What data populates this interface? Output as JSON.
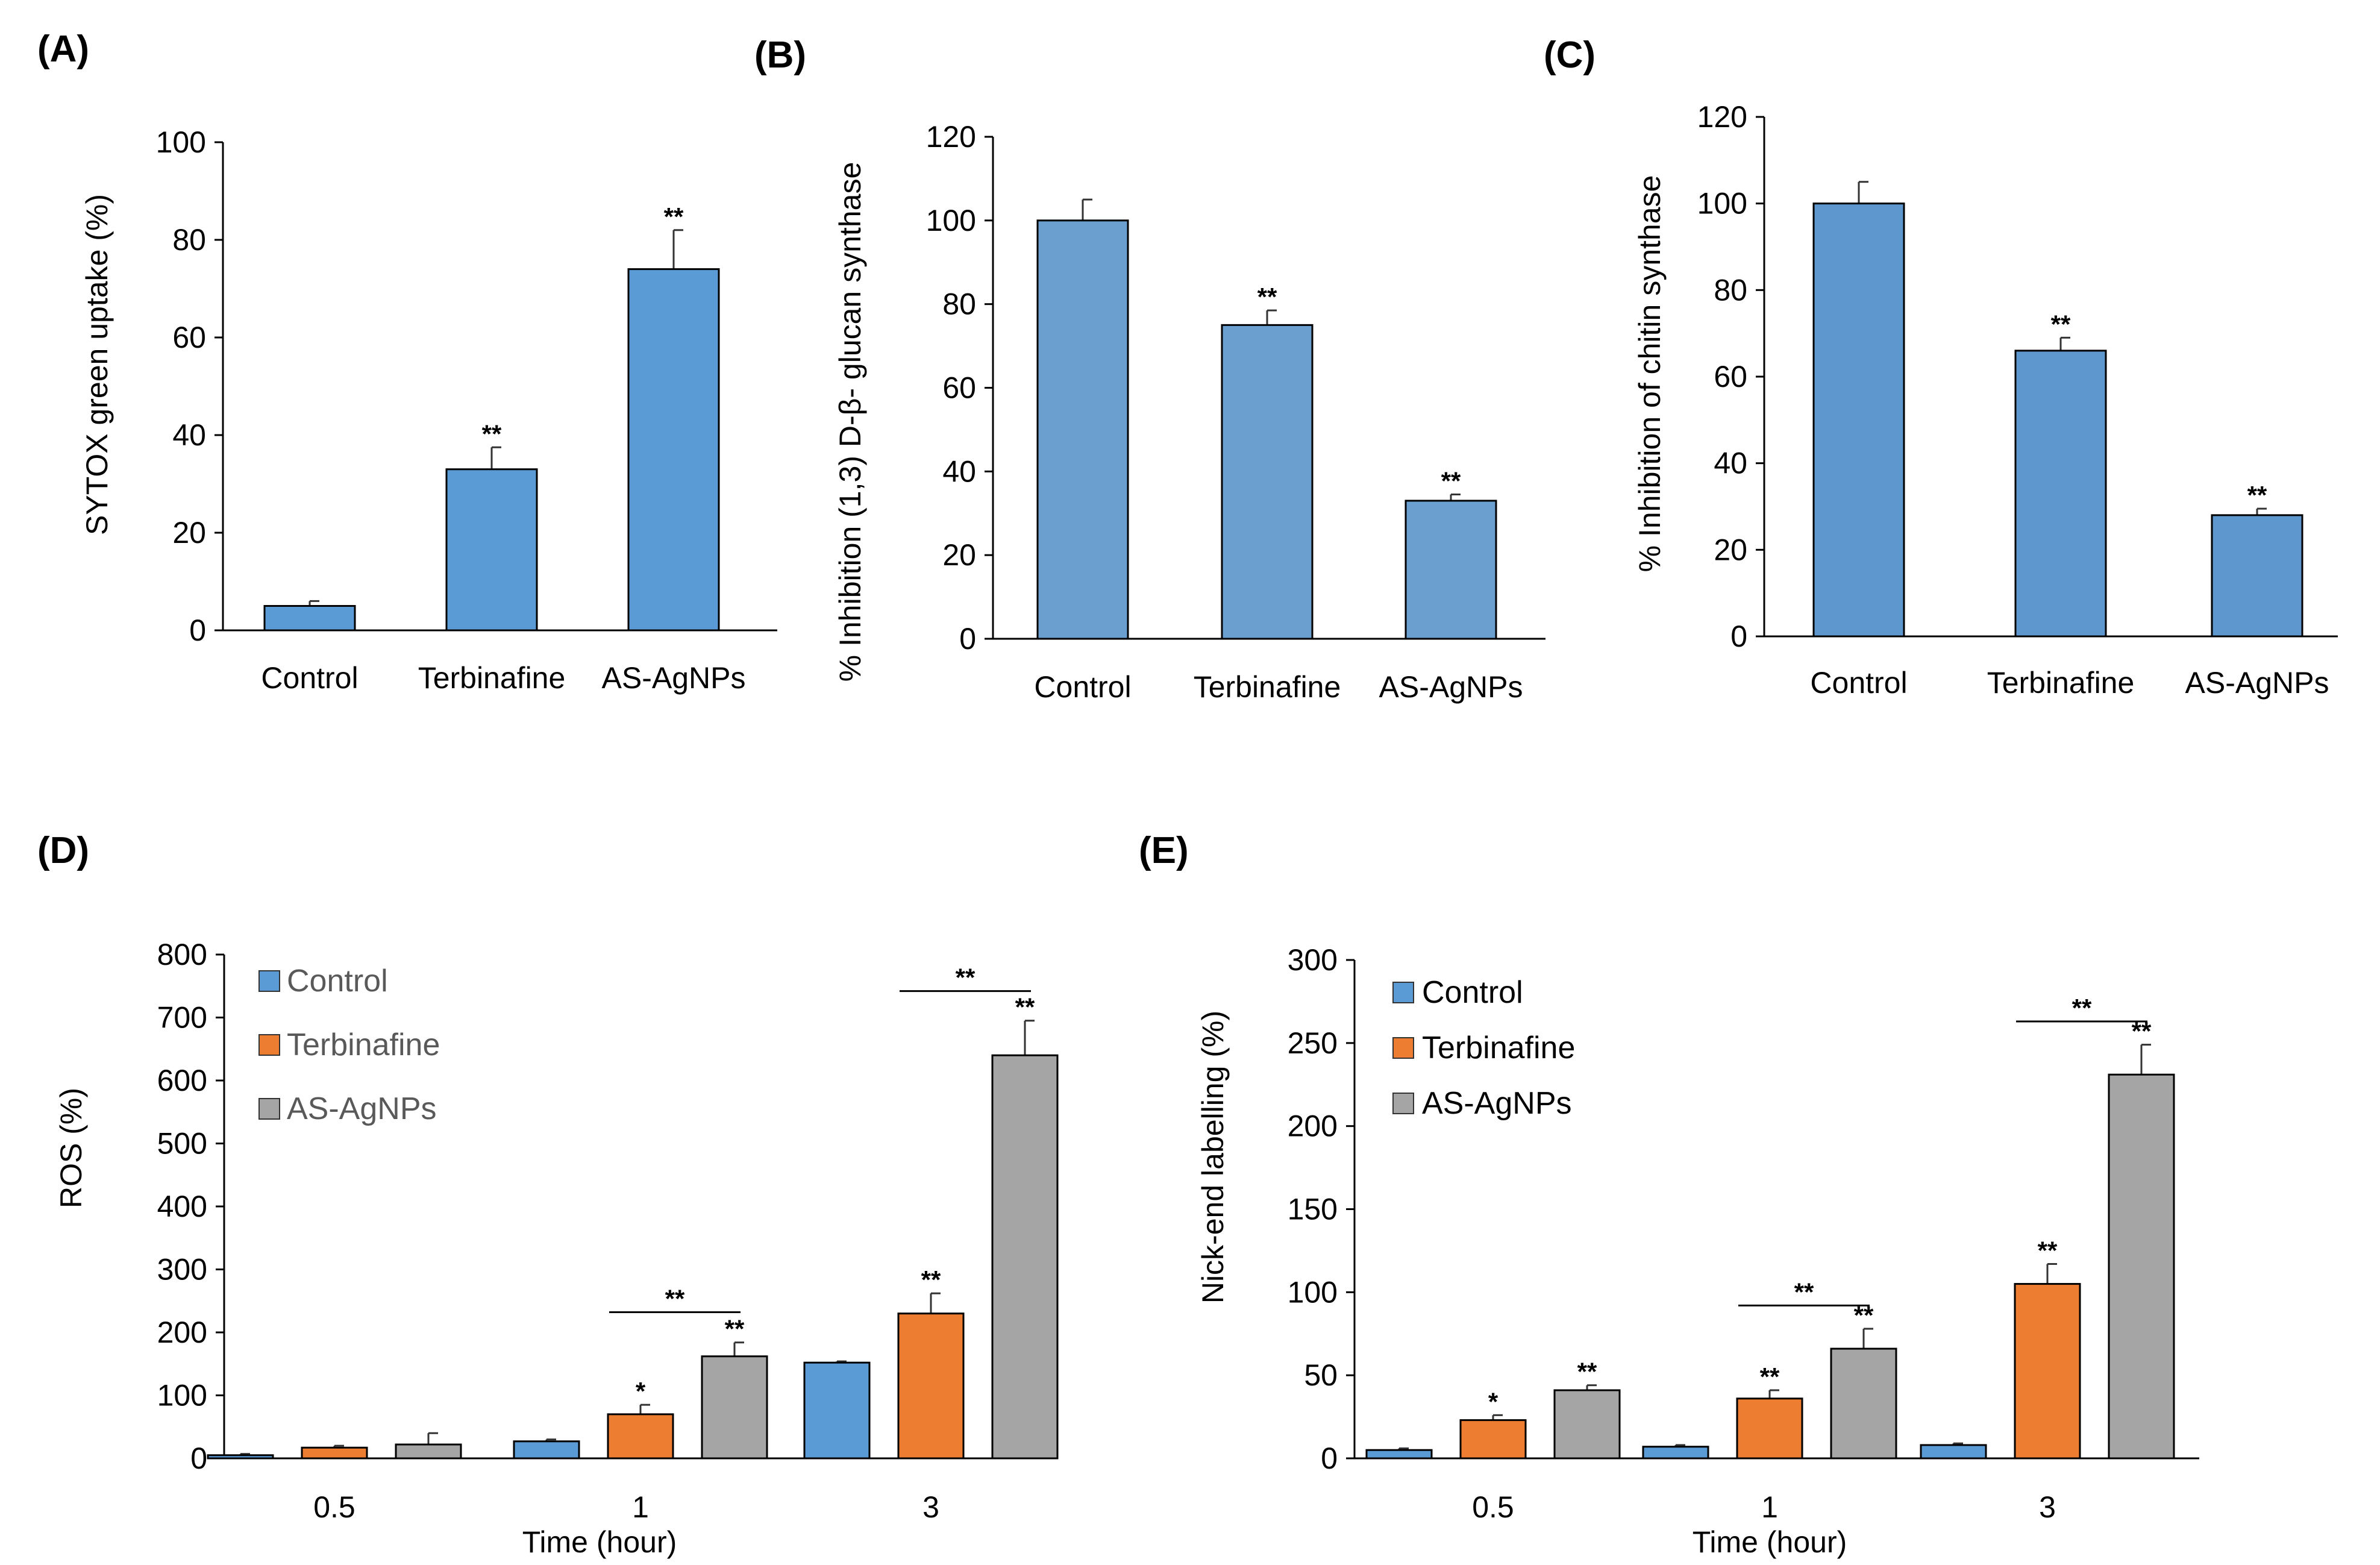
{
  "colors": {
    "single_bar": "#5B9BD5",
    "single_bar_b": "#6A9FCF",
    "single_bar_c": "#5E96CE",
    "control": "#5B9BD5",
    "terbinafine": "#ED7D31",
    "agnps": "#A5A5A5"
  },
  "chart_data": [
    {
      "id": "A",
      "type": "bar",
      "panel_label": "(A)",
      "ylabel": "SYTOX  green uptake (%)",
      "xlabel": "",
      "categories": [
        "Control",
        "Terbinafine",
        "AS-AgNPs"
      ],
      "values": [
        5,
        33,
        74
      ],
      "errors": [
        1,
        4.5,
        8
      ],
      "significance": [
        "",
        "**",
        "**"
      ],
      "ylim": [
        0,
        100
      ],
      "yticks": [
        0,
        20,
        40,
        60,
        80,
        100
      ]
    },
    {
      "id": "B",
      "type": "bar",
      "panel_label": "(B)",
      "ylabel": "% Inhibition (1,3) D-β- glucan synthase",
      "xlabel": "",
      "categories": [
        "Control",
        "Terbinafine",
        "AS-AgNPs"
      ],
      "values": [
        100,
        75,
        33
      ],
      "errors": [
        5,
        3.5,
        1.5
      ],
      "significance": [
        "",
        "**",
        "**"
      ],
      "ylim": [
        0,
        120
      ],
      "yticks": [
        0,
        20,
        40,
        60,
        80,
        100,
        120
      ]
    },
    {
      "id": "C",
      "type": "bar",
      "panel_label": "(C)",
      "ylabel": "% Inhibition  of chitin synthase",
      "xlabel": "",
      "categories": [
        "Control",
        "Terbinafine",
        "AS-AgNPs"
      ],
      "values": [
        100,
        66,
        28
      ],
      "errors": [
        5,
        3,
        1.5
      ],
      "significance": [
        "",
        "**",
        "**"
      ],
      "ylim": [
        0,
        120
      ],
      "yticks": [
        0,
        20,
        40,
        60,
        80,
        100,
        120
      ]
    },
    {
      "id": "D",
      "type": "bar",
      "panel_label": "(D)",
      "ylabel": "ROS (%)",
      "xlabel": "Time (hour)",
      "categories": [
        "0.5",
        "1",
        "3"
      ],
      "ylim": [
        0,
        800
      ],
      "yticks": [
        0,
        100,
        200,
        300,
        400,
        500,
        600,
        700,
        800
      ],
      "series": [
        {
          "name": "Control",
          "values": [
            5,
            27,
            152
          ],
          "errors": [
            2,
            3,
            2
          ],
          "significance": [
            "",
            "",
            ""
          ]
        },
        {
          "name": "Terbinafine",
          "values": [
            17,
            70,
            230
          ],
          "errors": [
            3,
            15,
            32
          ],
          "significance": [
            "",
            "*",
            "**"
          ]
        },
        {
          "name": "AS-AgNPs",
          "values": [
            22,
            162,
            640
          ],
          "errors": [
            18,
            22,
            55
          ],
          "significance": [
            "",
            "**",
            "**"
          ]
        }
      ],
      "brackets": [
        {
          "category": "1",
          "label": "**",
          "y": 232
        },
        {
          "category": "3",
          "label": "**",
          "y": 742
        }
      ],
      "legend": "top-left"
    },
    {
      "id": "E",
      "type": "bar",
      "panel_label": "(E)",
      "ylabel": "Nick-end labelling (%)",
      "xlabel": "Time (hour)",
      "categories": [
        "0.5",
        "1",
        "3"
      ],
      "ylim": [
        0,
        300
      ],
      "yticks": [
        0,
        50,
        100,
        150,
        200,
        250,
        300
      ],
      "series": [
        {
          "name": "Control",
          "values": [
            5,
            7,
            8
          ],
          "errors": [
            1,
            1,
            1
          ],
          "significance": [
            "",
            "",
            ""
          ]
        },
        {
          "name": "Terbinafine",
          "values": [
            23,
            36,
            105
          ],
          "errors": [
            3,
            5,
            12
          ],
          "significance": [
            "*",
            "**",
            "**"
          ]
        },
        {
          "name": "AS-AgNPs",
          "values": [
            41,
            66,
            231
          ],
          "errors": [
            3,
            12,
            18
          ],
          "significance": [
            "**",
            "**",
            "**"
          ]
        }
      ],
      "brackets": [
        {
          "category": "1",
          "label": "**",
          "y": 92
        },
        {
          "category": "3",
          "label": "**",
          "y": 263
        }
      ],
      "legend": "top-left"
    }
  ]
}
